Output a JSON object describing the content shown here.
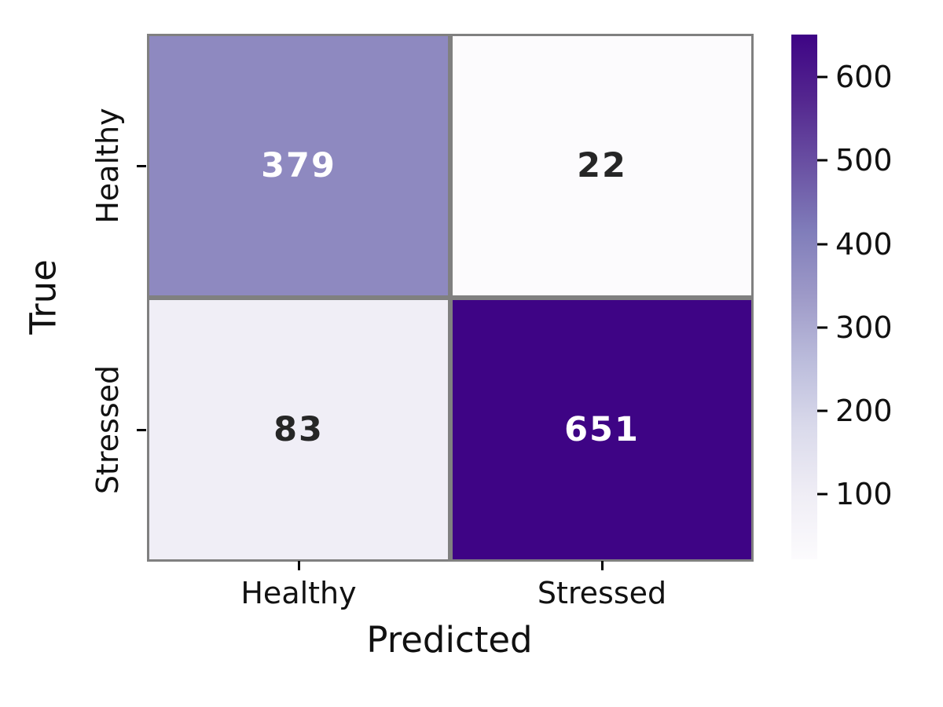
{
  "chart_data": {
    "type": "heatmap",
    "title": "",
    "xlabel": "Predicted",
    "ylabel": "True",
    "x_categories": [
      "Healthy",
      "Stressed"
    ],
    "y_categories": [
      "Healthy",
      "Stressed"
    ],
    "matrix": [
      [
        379,
        22
      ],
      [
        83,
        651
      ]
    ],
    "vmin": 22,
    "vmax": 651,
    "colormap": "Purples",
    "grid_line_color": "#808080",
    "cells": [
      {
        "row": "Healthy",
        "col": "Healthy",
        "value": "379",
        "bg": "#8e89c0",
        "text_color": "#ffffff"
      },
      {
        "row": "Healthy",
        "col": "Stressed",
        "value": "22",
        "bg": "#fcfbfd",
        "text_color": "#262626"
      },
      {
        "row": "Stressed",
        "col": "Healthy",
        "value": "83",
        "bg": "#f0eef6",
        "text_color": "#262626"
      },
      {
        "row": "Stressed",
        "col": "Stressed",
        "value": "651",
        "bg": "#3e0485",
        "text_color": "#ffffff"
      }
    ],
    "colorbar": {
      "ticks": [
        100,
        200,
        300,
        400,
        500,
        600
      ],
      "vmin": 22,
      "vmax": 651,
      "gradient_stops": [
        [
          0.0,
          "#fcfbfd"
        ],
        [
          0.125,
          "#efedf5"
        ],
        [
          0.25,
          "#dadaeb"
        ],
        [
          0.375,
          "#bcbddc"
        ],
        [
          0.5,
          "#9e9ac8"
        ],
        [
          0.625,
          "#807dba"
        ],
        [
          0.75,
          "#6a51a3"
        ],
        [
          0.875,
          "#54278f"
        ],
        [
          1.0,
          "#3e0485"
        ]
      ]
    },
    "legend": null,
    "grid": false
  }
}
